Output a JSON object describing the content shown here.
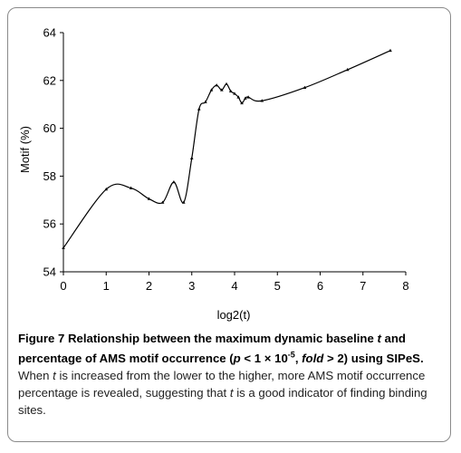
{
  "chart_data": {
    "type": "line",
    "xlabel": "log2(t)",
    "ylabel": "Motif (%)",
    "xlim": [
      0,
      8
    ],
    "ylim": [
      54,
      64
    ],
    "xticks": [
      "0",
      "1",
      "2",
      "3",
      "4",
      "5",
      "6",
      "7",
      "8"
    ],
    "yticks": [
      "54",
      "56",
      "58",
      "60",
      "62",
      "64"
    ],
    "grid": false,
    "legend": "none",
    "line_color": "#000000",
    "series": [
      {
        "x": [
          0,
          1,
          1.58,
          2,
          2.32,
          2.58,
          2.81,
          3,
          3.17,
          3.32,
          3.46,
          3.58,
          3.7,
          3.81,
          3.91,
          4,
          4.09,
          4.17,
          4.25,
          4.32,
          4.64,
          5.64,
          6.64,
          7.64
        ],
        "values": [
          55.0,
          57.45,
          57.5,
          57.05,
          56.9,
          57.75,
          56.9,
          58.75,
          60.8,
          61.1,
          61.6,
          61.8,
          61.6,
          61.85,
          61.55,
          61.45,
          61.3,
          61.05,
          61.25,
          61.3,
          61.15,
          61.7,
          62.45,
          63.25
        ]
      }
    ]
  },
  "caption": {
    "figure_label": "Figure 7",
    "title_part1": " Relationship between the maximum dynamic baseline ",
    "title_t": "t",
    "title_part2": " and percentage of AMS motif occurrence (",
    "title_p": "p",
    "title_part3": " < 1 × 10",
    "title_exp": "-5",
    "title_part4": ", ",
    "title_fold": "fold",
    "title_part5": " > 2) using SIPeS",
    "title_end": ".",
    "body_part1": " When ",
    "body_t1": "t",
    "body_part2": " is increased from the lower to the higher, more AMS motif occurrence percentage is revealed, suggesting that ",
    "body_t2": "t",
    "body_part3": " is a good indicator of finding binding sites."
  }
}
